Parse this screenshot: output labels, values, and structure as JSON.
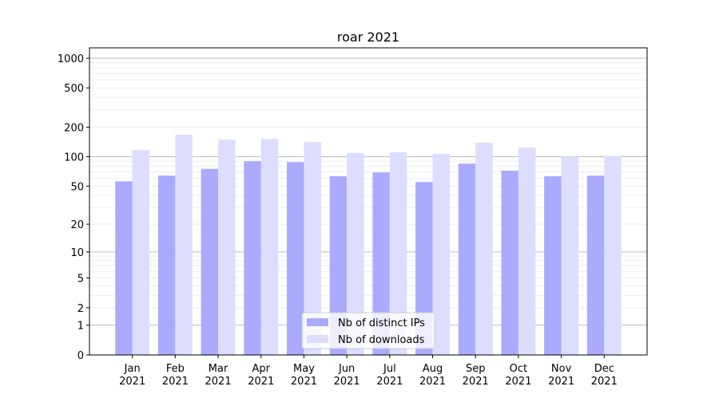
{
  "chart_data": {
    "type": "bar",
    "title": "roar 2021",
    "xlabel": "",
    "ylabel": "",
    "yscale": "log10(1+y)",
    "ylim": [
      0,
      1300
    ],
    "yticks": [
      0,
      1,
      2,
      5,
      10,
      20,
      50,
      100,
      200,
      500,
      1000
    ],
    "ytick_labels": [
      "0",
      "1",
      "2",
      "5",
      "10",
      "20",
      "50",
      "100",
      "200",
      "500",
      "1000"
    ],
    "grid": true,
    "legend_position": "bottom-center",
    "categories": [
      "Jan\n2021",
      "Feb\n2021",
      "Mar\n2021",
      "Apr\n2021",
      "May\n2021",
      "Jun\n2021",
      "Jul\n2021",
      "Aug\n2021",
      "Sep\n2021",
      "Oct\n2021",
      "Nov\n2021",
      "Dec\n2021"
    ],
    "series": [
      {
        "name": "Nb of distinct IPs",
        "color": "#aaaaff",
        "values": [
          56,
          64,
          75,
          90,
          88,
          63,
          69,
          55,
          85,
          72,
          63,
          64
        ]
      },
      {
        "name": "Nb of downloads",
        "color": "#ddddff",
        "values": [
          117,
          167,
          149,
          152,
          141,
          109,
          111,
          107,
          139,
          124,
          100,
          102
        ]
      }
    ]
  }
}
